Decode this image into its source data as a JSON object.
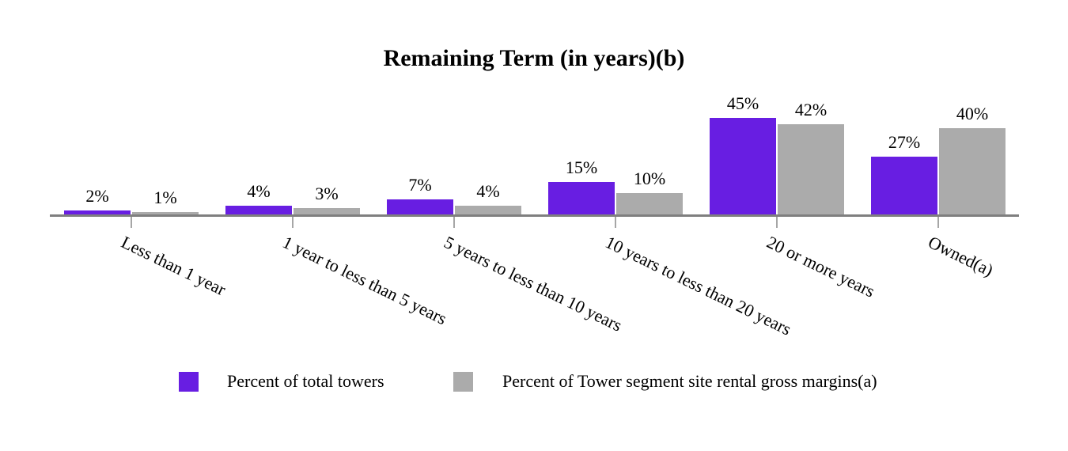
{
  "chart_data": {
    "type": "bar",
    "title": "Remaining Term (in years)(b)",
    "categories": [
      "Less than 1 year",
      "1 year to less than 5 years",
      "5 years to less than 10 years",
      "10 years to less than 20 years",
      "20 or more years",
      "Owned(a)"
    ],
    "series": [
      {
        "name": "Percent of total towers",
        "color": "#681ee2",
        "values": [
          2,
          4,
          7,
          15,
          45,
          27
        ]
      },
      {
        "name": "Percent of Tower segment site rental gross margins(a)",
        "color": "#ababab",
        "values": [
          1,
          3,
          4,
          10,
          42,
          40
        ]
      }
    ],
    "value_label_suffix": "%",
    "ylim": [
      0,
      50
    ],
    "grid": false,
    "legend_position": "bottom",
    "axis_color": "#7f7f7f",
    "value_labels": {
      "series_1": [
        "2%",
        "4%",
        "7%",
        "15%",
        "45%",
        "27%"
      ],
      "series_2": [
        "1%",
        "3%",
        "4%",
        "10%",
        "42%",
        "40%"
      ]
    }
  }
}
